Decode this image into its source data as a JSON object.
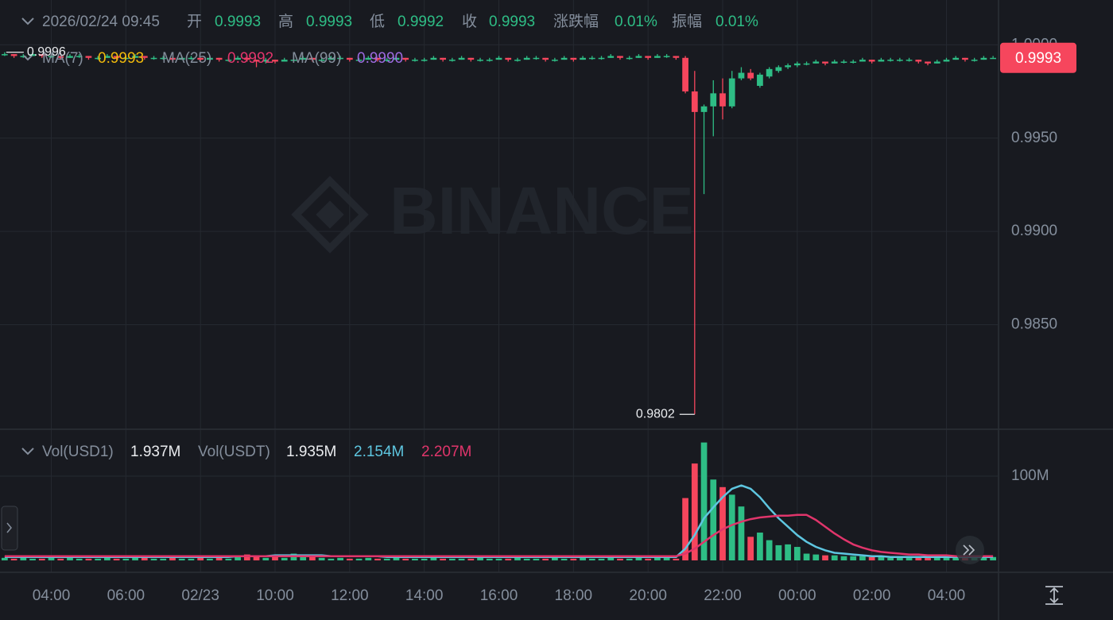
{
  "header": {
    "datetime": "2026/02/24 09:45",
    "items": [
      {
        "label": "开",
        "value": "0.9993"
      },
      {
        "label": "高",
        "value": "0.9993"
      },
      {
        "label": "低",
        "value": "0.9992"
      },
      {
        "label": "收",
        "value": "0.9993"
      },
      {
        "label": "涨跌幅",
        "value": "0.01%"
      },
      {
        "label": "振幅",
        "value": "0.01%"
      }
    ]
  },
  "watermark": "BINANCE",
  "chart_data": [
    {
      "type": "candlestick",
      "ma_legend": [
        {
          "label": "MA(7)",
          "value": "0.9993",
          "color": "#f0b90b"
        },
        {
          "label": "MA(25)",
          "value": "0.9992",
          "color": "#e0356b"
        },
        {
          "label": "MA(99)",
          "value": "0.9990",
          "color": "#9c6ade"
        }
      ],
      "high_label": "0.9996",
      "low_label": "0.9802",
      "last_price_label": "0.9993",
      "up_color": "#2ebd85",
      "down_color": "#f6465d",
      "ylim": [
        0.9794,
        1.0024
      ],
      "yticks": [
        {
          "value": 0.985,
          "label": "0.9850"
        },
        {
          "value": 0.99,
          "label": "0.9900"
        },
        {
          "value": 0.995,
          "label": "0.9950"
        },
        {
          "value": 1.0,
          "label": "1.0000"
        }
      ],
      "grid": true,
      "categories": [
        null,
        null,
        null,
        null,
        null,
        "04:00",
        null,
        null,
        null,
        null,
        null,
        null,
        null,
        "06:00",
        null,
        null,
        null,
        null,
        null,
        null,
        null,
        "02/23",
        null,
        null,
        null,
        null,
        null,
        null,
        null,
        "10:00",
        null,
        null,
        null,
        null,
        null,
        null,
        null,
        "12:00",
        null,
        null,
        null,
        null,
        null,
        null,
        null,
        "14:00",
        null,
        null,
        null,
        null,
        null,
        null,
        null,
        "16:00",
        null,
        null,
        null,
        null,
        null,
        null,
        null,
        "18:00",
        null,
        null,
        null,
        null,
        null,
        null,
        null,
        "20:00",
        null,
        null,
        null,
        null,
        null,
        null,
        null,
        "22:00",
        null,
        null,
        null,
        null,
        null,
        null,
        null,
        "00:00",
        null,
        null,
        null,
        null,
        null,
        null,
        null,
        "02:00",
        null,
        null,
        null,
        null,
        null,
        null,
        null,
        "04:00",
        null,
        null,
        null,
        null,
        null
      ],
      "candles": [
        [
          0.9995,
          0.9996,
          0.9994,
          0.9995
        ],
        [
          0.9995,
          0.9995,
          0.9993,
          0.9994
        ],
        [
          0.9994,
          0.9995,
          0.9993,
          0.9994
        ],
        [
          0.9994,
          0.9996,
          0.9994,
          0.9995
        ],
        [
          0.9995,
          0.9995,
          0.9993,
          0.9994
        ],
        [
          0.9994,
          0.9995,
          0.9993,
          0.9994
        ],
        [
          0.9994,
          0.9994,
          0.9992,
          0.9993
        ],
        [
          0.9993,
          0.9995,
          0.9993,
          0.9994
        ],
        [
          0.9994,
          0.9995,
          0.9993,
          0.9994
        ],
        [
          0.9994,
          0.9994,
          0.9992,
          0.9993
        ],
        [
          0.9993,
          0.9994,
          0.9992,
          0.9993
        ],
        [
          0.9993,
          0.9995,
          0.9993,
          0.9994
        ],
        [
          0.9994,
          0.9994,
          0.9992,
          0.9993
        ],
        [
          0.9993,
          0.9994,
          0.9992,
          0.9993
        ],
        [
          0.9993,
          0.9995,
          0.9993,
          0.9994
        ],
        [
          0.9994,
          0.9994,
          0.9992,
          0.9993
        ],
        [
          0.9993,
          0.9994,
          0.9992,
          0.9993
        ],
        [
          0.9993,
          0.9994,
          0.9992,
          0.9993
        ],
        [
          0.9993,
          0.9993,
          0.9991,
          0.9992
        ],
        [
          0.9992,
          0.9994,
          0.9992,
          0.9993
        ],
        [
          0.9993,
          0.9994,
          0.9992,
          0.9993
        ],
        [
          0.9993,
          0.9993,
          0.9991,
          0.9992
        ],
        [
          0.9992,
          0.9994,
          0.9992,
          0.9993
        ],
        [
          0.9993,
          0.9993,
          0.9991,
          0.9992
        ],
        [
          0.9992,
          0.9993,
          0.9991,
          0.9992
        ],
        [
          0.9992,
          0.9994,
          0.9992,
          0.9993
        ],
        [
          0.9993,
          0.9993,
          0.9991,
          0.9992
        ],
        [
          0.9992,
          0.9992,
          0.9988,
          0.9991
        ],
        [
          0.9991,
          0.9993,
          0.999,
          0.9992
        ],
        [
          0.9992,
          0.9992,
          0.999,
          0.9991
        ],
        [
          0.9991,
          0.9993,
          0.9991,
          0.9992
        ],
        [
          0.9992,
          0.9993,
          0.9991,
          0.9992
        ],
        [
          0.9992,
          0.9994,
          0.9992,
          0.9993
        ],
        [
          0.9993,
          0.9993,
          0.9991,
          0.9992
        ],
        [
          0.9992,
          0.9993,
          0.9991,
          0.9992
        ],
        [
          0.9992,
          0.9994,
          0.9992,
          0.9993
        ],
        [
          0.9993,
          0.9994,
          0.9992,
          0.9993
        ],
        [
          0.9993,
          0.9993,
          0.9991,
          0.9992
        ],
        [
          0.9992,
          0.9993,
          0.9991,
          0.9992
        ],
        [
          0.9992,
          0.9994,
          0.9992,
          0.9993
        ],
        [
          0.9993,
          0.9993,
          0.9991,
          0.9992
        ],
        [
          0.9992,
          0.9993,
          0.9991,
          0.9992
        ],
        [
          0.9992,
          0.9994,
          0.9992,
          0.9993
        ],
        [
          0.9993,
          0.9993,
          0.9991,
          0.9992
        ],
        [
          0.9992,
          0.9993,
          0.9991,
          0.9992
        ],
        [
          0.9992,
          0.9993,
          0.9991,
          0.9992
        ],
        [
          0.9992,
          0.9994,
          0.9992,
          0.9993
        ],
        [
          0.9993,
          0.9993,
          0.9991,
          0.9992
        ],
        [
          0.9992,
          0.9993,
          0.9991,
          0.9992
        ],
        [
          0.9992,
          0.9994,
          0.9992,
          0.9993
        ],
        [
          0.9993,
          0.9993,
          0.9991,
          0.9992
        ],
        [
          0.9992,
          0.9993,
          0.9991,
          0.9992
        ],
        [
          0.9992,
          0.9993,
          0.9991,
          0.9992
        ],
        [
          0.9992,
          0.9994,
          0.9992,
          0.9993
        ],
        [
          0.9993,
          0.9993,
          0.9991,
          0.9992
        ],
        [
          0.9992,
          0.9993,
          0.9991,
          0.9992
        ],
        [
          0.9992,
          0.9994,
          0.9992,
          0.9993
        ],
        [
          0.9993,
          0.9994,
          0.9992,
          0.9993
        ],
        [
          0.9993,
          0.9993,
          0.9991,
          0.9992
        ],
        [
          0.9992,
          0.9993,
          0.9991,
          0.9992
        ],
        [
          0.9992,
          0.9994,
          0.9992,
          0.9993
        ],
        [
          0.9993,
          0.9993,
          0.9991,
          0.9992
        ],
        [
          0.9992,
          0.9994,
          0.9992,
          0.9993
        ],
        [
          0.9993,
          0.9994,
          0.9992,
          0.9993
        ],
        [
          0.9993,
          0.9994,
          0.9992,
          0.9993
        ],
        [
          0.9993,
          0.9995,
          0.9993,
          0.9994
        ],
        [
          0.9994,
          0.9994,
          0.9992,
          0.9993
        ],
        [
          0.9993,
          0.9994,
          0.9992,
          0.9993
        ],
        [
          0.9993,
          0.9995,
          0.9993,
          0.9994
        ],
        [
          0.9994,
          0.9994,
          0.9992,
          0.9993
        ],
        [
          0.9993,
          0.9995,
          0.9993,
          0.9994
        ],
        [
          0.9994,
          0.9995,
          0.9993,
          0.9994
        ],
        [
          0.9994,
          0.9994,
          0.9992,
          0.9993
        ],
        [
          0.9993,
          0.9994,
          0.9974,
          0.9975
        ],
        [
          0.9975,
          0.9986,
          0.9802,
          0.9964
        ],
        [
          0.9964,
          0.9968,
          0.992,
          0.9967
        ],
        [
          0.9967,
          0.9981,
          0.9951,
          0.9974
        ],
        [
          0.9974,
          0.9982,
          0.996,
          0.9967
        ],
        [
          0.9967,
          0.9986,
          0.9966,
          0.9982
        ],
        [
          0.9982,
          0.9988,
          0.9981,
          0.9985
        ],
        [
          0.9985,
          0.9987,
          0.9981,
          0.9982
        ],
        [
          0.9978,
          0.9985,
          0.9977,
          0.9984
        ],
        [
          0.9983,
          0.9988,
          0.9982,
          0.9987
        ],
        [
          0.9986,
          0.9989,
          0.9985,
          0.9988
        ],
        [
          0.9988,
          0.999,
          0.9987,
          0.9989
        ],
        [
          0.9989,
          0.9991,
          0.9988,
          0.999
        ],
        [
          0.999,
          0.9991,
          0.9989,
          0.999
        ],
        [
          0.999,
          0.9992,
          0.999,
          0.9991
        ],
        [
          0.9991,
          0.9991,
          0.9989,
          0.999
        ],
        [
          0.999,
          0.9992,
          0.999,
          0.9991
        ],
        [
          0.9991,
          0.9992,
          0.999,
          0.9991
        ],
        [
          0.9991,
          0.9992,
          0.999,
          0.9991
        ],
        [
          0.9991,
          0.9993,
          0.9991,
          0.9992
        ],
        [
          0.9992,
          0.9992,
          0.999,
          0.9991
        ],
        [
          0.9991,
          0.9993,
          0.9991,
          0.9992
        ],
        [
          0.9992,
          0.9993,
          0.9991,
          0.9992
        ],
        [
          0.9992,
          0.9993,
          0.9991,
          0.9992
        ],
        [
          0.9992,
          0.9993,
          0.9991,
          0.9992
        ],
        [
          0.9992,
          0.9992,
          0.999,
          0.9991
        ],
        [
          0.9991,
          0.9991,
          0.9989,
          0.999
        ],
        [
          0.999,
          0.9992,
          0.999,
          0.9991
        ],
        [
          0.9991,
          0.9993,
          0.9991,
          0.9992
        ],
        [
          0.9992,
          0.9994,
          0.9992,
          0.9993
        ],
        [
          0.9993,
          0.9993,
          0.9991,
          0.9992
        ],
        [
          0.9992,
          0.9993,
          0.9991,
          0.9992
        ],
        [
          0.9992,
          0.9994,
          0.9992,
          0.9993
        ],
        [
          0.9993,
          0.9994,
          0.9993,
          0.9993
        ]
      ]
    },
    {
      "type": "bar",
      "legend": [
        {
          "label": "Vol(USD1)",
          "value": "1.937M"
        },
        {
          "label": "Vol(USDT)",
          "value": "1.935M"
        }
      ],
      "ylim": [
        0,
        151
      ],
      "yticks": [
        {
          "value": 100,
          "label": "100M"
        }
      ],
      "values": [
        3,
        2,
        3,
        2,
        2,
        3,
        2,
        3,
        2,
        2,
        2,
        3,
        2,
        2,
        3,
        4,
        2,
        2,
        3,
        2,
        2,
        3,
        2,
        3,
        2,
        5,
        7,
        6,
        3,
        4,
        3,
        8,
        7,
        4,
        3,
        2,
        3,
        2,
        2,
        3,
        2,
        2,
        3,
        2,
        2,
        2,
        3,
        2,
        2,
        2,
        2,
        3,
        2,
        2,
        2,
        3,
        2,
        2,
        2,
        3,
        2,
        2,
        3,
        2,
        2,
        3,
        2,
        2,
        3,
        2,
        4,
        3,
        2,
        74,
        115,
        140,
        96,
        87,
        78,
        64,
        28,
        33,
        24,
        18,
        19,
        16,
        8,
        7,
        6,
        6,
        5,
        5,
        5,
        4,
        4,
        3,
        3,
        4,
        3,
        4,
        3,
        3,
        3,
        4,
        3,
        3,
        4
      ],
      "series": [
        {
          "color": "#5ec6e0",
          "value_label": "2.154M",
          "values": [
            4,
            4,
            4,
            4,
            4,
            4,
            4,
            4,
            4,
            4,
            4,
            4,
            4,
            4,
            4,
            4,
            4,
            4,
            4,
            4,
            4,
            4,
            4,
            4,
            4,
            5,
            5,
            5,
            5,
            6,
            6,
            6,
            6,
            6,
            6,
            5,
            5,
            5,
            5,
            5,
            5,
            4,
            4,
            4,
            4,
            4,
            4,
            4,
            4,
            4,
            4,
            4,
            4,
            4,
            4,
            4,
            4,
            4,
            4,
            4,
            4,
            4,
            4,
            4,
            4,
            4,
            4,
            4,
            4,
            4,
            4,
            4,
            4,
            14,
            30,
            50,
            63,
            75,
            85,
            89,
            85,
            75,
            62,
            50,
            40,
            30,
            22,
            16,
            12,
            9,
            8,
            7,
            6,
            5,
            5,
            4,
            4,
            4,
            4,
            4,
            4,
            4,
            4,
            4,
            4,
            4,
            4
          ]
        },
        {
          "color": "#e0356b",
          "value_label": "2.207M",
          "values": [
            5,
            5,
            5,
            5,
            5,
            5,
            5,
            5,
            5,
            5,
            5,
            5,
            5,
            5,
            5,
            5,
            5,
            5,
            5,
            5,
            5,
            5,
            5,
            5,
            5,
            5,
            5,
            5,
            5,
            5,
            5,
            5,
            5,
            5,
            5,
            5,
            5,
            5,
            5,
            5,
            5,
            5,
            5,
            5,
            5,
            5,
            5,
            5,
            5,
            5,
            5,
            5,
            5,
            5,
            5,
            5,
            5,
            5,
            5,
            5,
            5,
            5,
            5,
            5,
            5,
            5,
            5,
            5,
            5,
            5,
            5,
            5,
            5,
            8,
            14,
            22,
            30,
            37,
            42,
            46,
            49,
            51,
            52,
            53,
            53,
            54,
            54,
            48,
            40,
            32,
            25,
            19,
            15,
            12,
            10,
            9,
            8,
            7,
            7,
            6,
            6,
            6,
            5,
            5,
            5,
            5,
            5
          ]
        }
      ]
    }
  ]
}
